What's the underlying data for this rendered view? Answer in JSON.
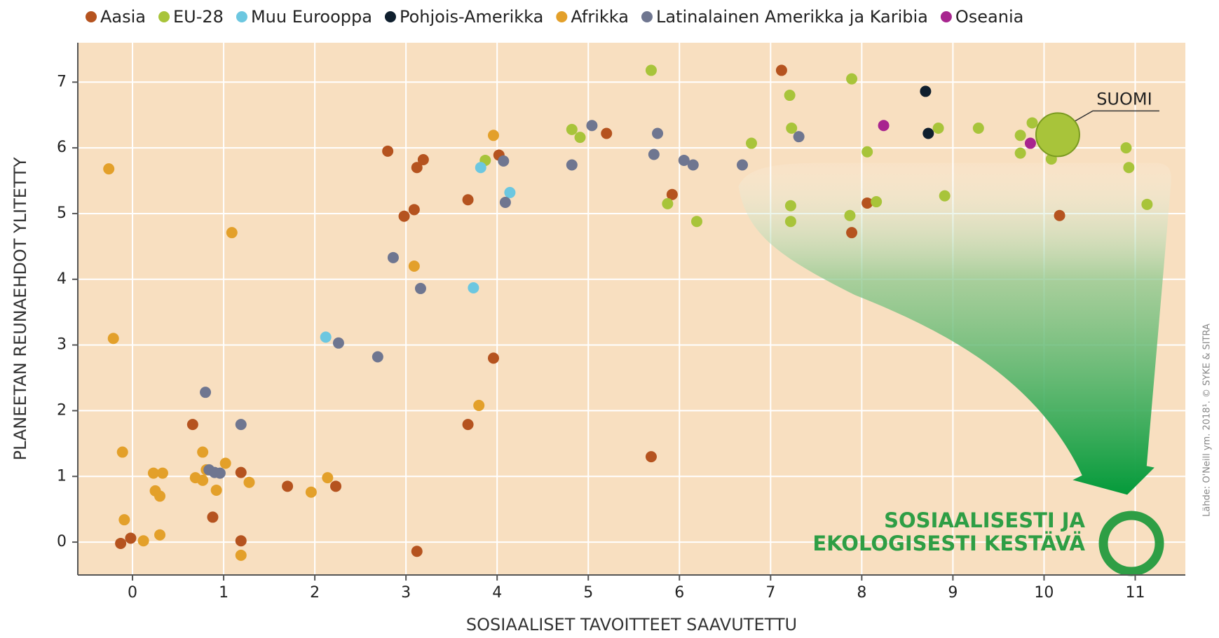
{
  "chart_data": {
    "type": "scatter",
    "xlabel": "SOSIAALISET TAVOITTEET SAAVUTETTU",
    "ylabel": "PLANEETAN REUNAEHDOT YLITETTY",
    "xlim": [
      -0.6,
      11.55
    ],
    "ylim": [
      -0.5,
      7.6
    ],
    "xticks": [
      0,
      1,
      2,
      3,
      4,
      5,
      6,
      7,
      8,
      9,
      10,
      11
    ],
    "yticks": [
      0,
      1,
      2,
      3,
      4,
      5,
      6,
      7
    ],
    "grid": true,
    "background": "#f8dfc0",
    "series": [
      {
        "name": "Aasia",
        "color": "#b5531f",
        "x": [
          -0.13,
          -0.02,
          0.66,
          0.88,
          1.19,
          1.19,
          1.7,
          2.23,
          2.8,
          2.98,
          3.09,
          3.12,
          3.19,
          3.12,
          3.68,
          3.68,
          3.96,
          4.02,
          5.2,
          5.92,
          5.69,
          7.12,
          7.89,
          8.06,
          10.17
        ],
        "y": [
          -0.02,
          0.06,
          1.79,
          0.38,
          1.06,
          0.02,
          0.85,
          0.85,
          5.95,
          4.96,
          5.06,
          5.7,
          5.82,
          -0.14,
          5.21,
          1.79,
          2.8,
          5.89,
          6.22,
          5.29,
          1.3,
          7.18,
          4.71,
          5.16,
          4.97
        ]
      },
      {
        "name": "EU-28",
        "color": "#a8c43a",
        "x": [
          3.87,
          4.82,
          4.91,
          5.69,
          5.87,
          6.19,
          6.79,
          7.21,
          7.23,
          7.22,
          7.22,
          7.89,
          7.87,
          8.06,
          8.16,
          8.84,
          8.91,
          9.28,
          9.74,
          9.87,
          9.74,
          10.08,
          10.9,
          10.93,
          11.13
        ],
        "y": [
          5.81,
          6.28,
          6.16,
          7.18,
          5.15,
          4.88,
          6.07,
          6.8,
          6.3,
          5.12,
          4.88,
          7.05,
          4.97,
          5.94,
          5.18,
          6.3,
          5.27,
          6.3,
          6.19,
          6.38,
          5.92,
          5.83,
          6.0,
          5.7,
          5.14
        ]
      },
      {
        "name": "Muu Eurooppa",
        "color": "#6cc7e0",
        "x": [
          2.12,
          3.74,
          3.82,
          4.14
        ],
        "y": [
          3.12,
          3.87,
          5.7,
          5.32
        ]
      },
      {
        "name": "Pohjois-Amerikka",
        "color": "#0f1f2e",
        "x": [
          8.7,
          8.73
        ],
        "y": [
          6.86,
          6.22
        ]
      },
      {
        "name": "Afrikka",
        "color": "#e3a02a",
        "x": [
          -0.26,
          -0.21,
          -0.11,
          -0.09,
          0.12,
          0.23,
          0.33,
          0.25,
          0.3,
          0.3,
          0.69,
          0.77,
          0.77,
          0.81,
          0.92,
          1.02,
          1.09,
          1.19,
          1.28,
          1.96,
          2.14,
          3.09,
          3.8,
          3.96
        ],
        "y": [
          5.68,
          3.1,
          1.37,
          0.34,
          0.02,
          1.05,
          1.05,
          0.78,
          0.7,
          0.11,
          0.98,
          1.37,
          0.94,
          1.1,
          0.79,
          1.2,
          4.71,
          -0.2,
          0.91,
          0.76,
          0.98,
          4.2,
          2.08,
          6.19
        ]
      },
      {
        "name": "Latinalainen Amerikka ja Karibia",
        "color": "#6f7690",
        "x": [
          0.8,
          0.84,
          0.9,
          0.96,
          1.19,
          2.26,
          2.69,
          2.86,
          3.16,
          4.07,
          4.09,
          4.82,
          5.04,
          5.72,
          5.76,
          6.05,
          6.15,
          6.69,
          7.31
        ],
        "y": [
          2.28,
          1.1,
          1.06,
          1.05,
          1.79,
          3.03,
          2.82,
          4.33,
          3.86,
          5.8,
          5.17,
          5.74,
          6.34,
          5.9,
          6.22,
          5.81,
          5.74,
          5.74,
          6.17
        ]
      },
      {
        "name": "Oseania",
        "color": "#a8258f",
        "x": [
          8.24,
          9.85
        ],
        "y": [
          6.34,
          6.07
        ]
      }
    ],
    "highlight": {
      "label": "SUOMI",
      "x": 10.15,
      "y": 6.2,
      "color": "#a8c43a"
    },
    "target_label": [
      "SOSIAALISESTI JA",
      "EKOLOGISESTI KESTÄVÄ"
    ],
    "source": "Lähde: O'Neill ym. 2018¹. © SYKE & SITRA"
  }
}
